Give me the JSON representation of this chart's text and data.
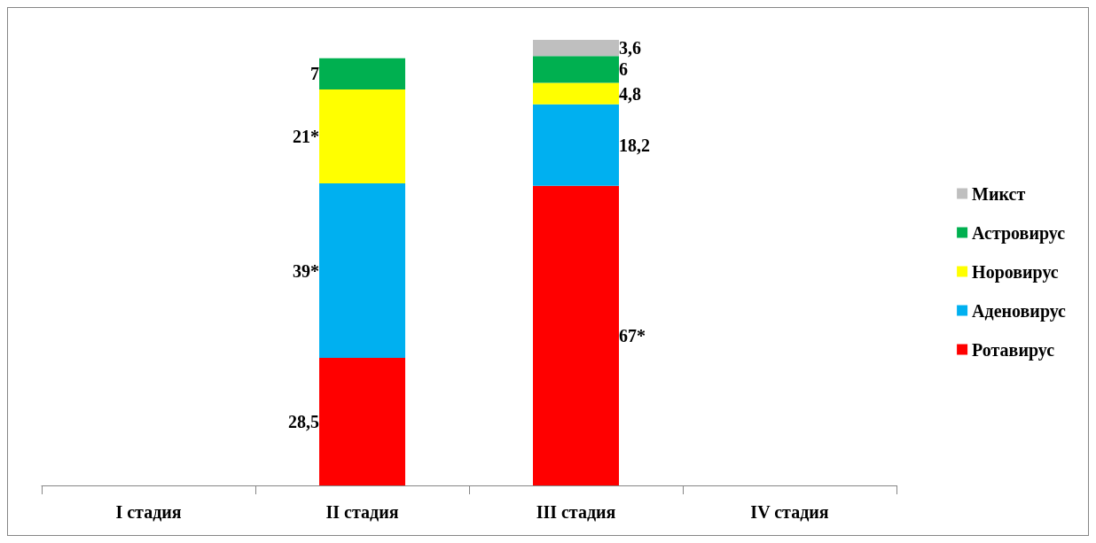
{
  "chart_data": {
    "type": "bar",
    "stacked": true,
    "categories": [
      "I стадия",
      "II стадия",
      "III стадия",
      "IV стадия"
    ],
    "series": [
      {
        "name": "Ротавирус",
        "color": "#ff0000",
        "values": [
          null,
          28.5,
          67,
          null
        ],
        "value_labels": [
          null,
          "28,5",
          "67*",
          null
        ]
      },
      {
        "name": "Аденовирус",
        "color": "#00b0f0",
        "values": [
          null,
          39,
          18.2,
          null
        ],
        "value_labels": [
          null,
          "39*",
          "18,2",
          null
        ]
      },
      {
        "name": "Норовирус",
        "color": "#ffff00",
        "values": [
          null,
          21,
          4.8,
          null
        ],
        "value_labels": [
          null,
          "21*",
          "4,8",
          null
        ]
      },
      {
        "name": "Астровирус",
        "color": "#00b050",
        "values": [
          null,
          7,
          6,
          null
        ],
        "value_labels": [
          null,
          "7",
          "6",
          null
        ]
      },
      {
        "name": "Микст",
        "color": "#bfbfbf",
        "values": [
          null,
          null,
          3.6,
          null
        ],
        "value_labels": [
          null,
          null,
          "3,6",
          null
        ]
      }
    ],
    "legend": "right",
    "grid": false
  }
}
